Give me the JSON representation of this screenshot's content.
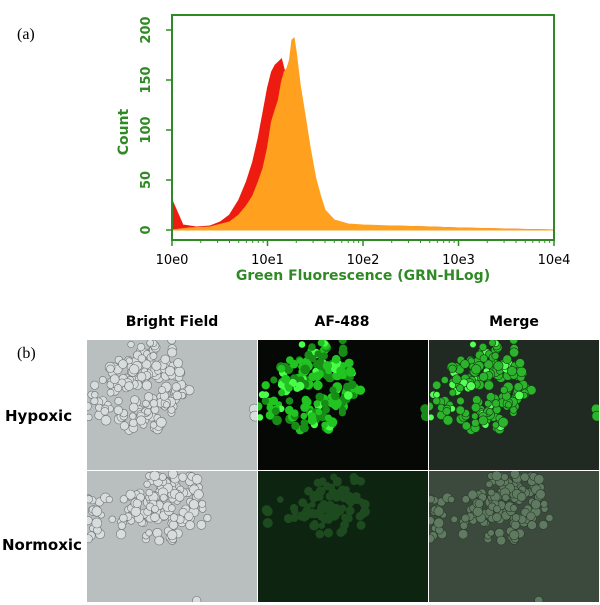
{
  "panel_a": {
    "label": "(a)"
  },
  "panel_b": {
    "label": "(b)"
  },
  "chart_data": {
    "type": "area",
    "xlabel": "Green Fluorescence (GRN-HLog)",
    "ylabel": "Count",
    "x_scale": "log",
    "x_ticks": [
      "10e0",
      "10e1",
      "10e2",
      "10e3",
      "10e4"
    ],
    "y_ticks": [
      "0",
      "50",
      "100",
      "150",
      "200"
    ],
    "xlim": [
      1,
      10000
    ],
    "ylim": [
      0,
      200
    ],
    "grid": false,
    "colors": {
      "axis": "#2f8a25",
      "red_series": "#ee1c10",
      "orange_series": "#ffa11e"
    },
    "series": [
      {
        "color": "#ee1c10",
        "x": [
          1,
          1.3,
          1.8,
          2.5,
          3.2,
          4,
          5,
          6,
          7,
          8,
          9,
          10,
          11,
          12,
          13,
          14,
          15,
          16,
          17,
          18,
          20,
          23,
          27,
          32,
          40,
          60,
          100,
          200,
          500,
          1000,
          3000,
          10000
        ],
        "y": [
          30,
          5,
          3,
          4,
          8,
          15,
          30,
          48,
          68,
          92,
          118,
          142,
          158,
          165,
          168,
          171,
          160,
          158,
          140,
          122,
          100,
          68,
          40,
          22,
          10,
          5,
          3,
          4,
          3,
          2,
          1,
          0
        ]
      },
      {
        "color": "#ffa11e",
        "x": [
          1,
          1.5,
          2.5,
          4,
          5,
          6,
          7,
          8,
          9,
          10,
          11,
          12,
          13,
          14,
          15,
          16,
          17,
          18,
          19,
          20,
          22,
          25,
          28,
          32,
          36,
          40,
          50,
          70,
          100,
          200,
          500,
          1000,
          3000,
          10000
        ],
        "y": [
          0,
          2,
          3,
          8,
          15,
          24,
          34,
          48,
          62,
          82,
          108,
          120,
          130,
          148,
          158,
          162,
          170,
          190,
          192,
          178,
          145,
          112,
          82,
          52,
          34,
          20,
          10,
          6,
          5,
          4,
          3,
          2,
          1,
          0
        ]
      }
    ]
  },
  "microscopy": {
    "columns": [
      "Bright Field",
      "AF-488",
      "Merge"
    ],
    "rows": [
      "Hypoxic",
      "Normoxic"
    ]
  }
}
